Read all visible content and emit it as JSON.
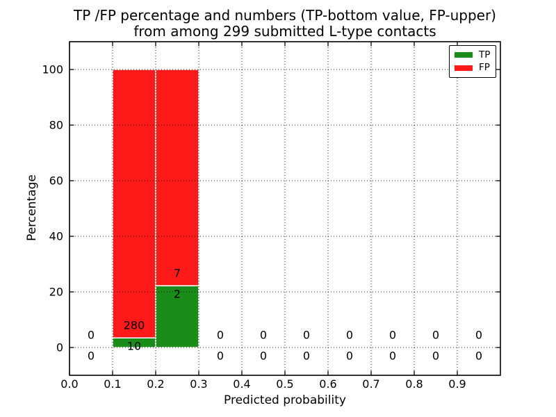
{
  "title": {
    "line1": "TP /FP percentage and numbers (TP-bottom value, FP-upper)",
    "line2": "from among 299 submitted L-type contacts"
  },
  "colors": {
    "tp_green": "#1a8c1a",
    "fp_red": "#ff1a1a",
    "background": "#ffffff",
    "grid": "#000000",
    "bar_edge": "#ffffff",
    "text": "#000000"
  },
  "chart_data": {
    "type": "bar",
    "stacked": true,
    "title": "TP /FP percentage and numbers (TP-bottom value, FP-upper) from among 299 submitted L-type contacts",
    "xlabel": "Predicted probability",
    "ylabel": "Percentage",
    "xlim": [
      0.0,
      1.0
    ],
    "ylim": [
      -10,
      110
    ],
    "grid": "dotted",
    "xticks": {
      "values": [
        0.0,
        0.1,
        0.2,
        0.3,
        0.4,
        0.5,
        0.6,
        0.7,
        0.8,
        0.9
      ],
      "labels": [
        "0.0",
        "0.1",
        "0.2",
        "0.3",
        "0.4",
        "0.5",
        "0.6",
        "0.7",
        "0.8",
        "0.9"
      ]
    },
    "yticks": {
      "values": [
        0,
        20,
        40,
        60,
        80,
        100
      ],
      "labels": [
        "0",
        "20",
        "40",
        "60",
        "80",
        "100"
      ]
    },
    "legend": {
      "position": "upper right",
      "entries": [
        {
          "label": "TP",
          "color": "#1a8c1a"
        },
        {
          "label": "FP",
          "color": "#ff1a1a"
        }
      ]
    },
    "total_submitted": 299,
    "bins": [
      {
        "range": [
          0.0,
          0.1
        ],
        "tp_count": 0,
        "fp_count": 0,
        "tp_pct": 0,
        "fp_pct": 0
      },
      {
        "range": [
          0.1,
          0.2
        ],
        "tp_count": 10,
        "fp_count": 280,
        "tp_pct": 3.45,
        "fp_pct": 96.55
      },
      {
        "range": [
          0.2,
          0.3
        ],
        "tp_count": 2,
        "fp_count": 7,
        "tp_pct": 22.22,
        "fp_pct": 77.78
      },
      {
        "range": [
          0.3,
          0.4
        ],
        "tp_count": 0,
        "fp_count": 0,
        "tp_pct": 0,
        "fp_pct": 0
      },
      {
        "range": [
          0.4,
          0.5
        ],
        "tp_count": 0,
        "fp_count": 0,
        "tp_pct": 0,
        "fp_pct": 0
      },
      {
        "range": [
          0.5,
          0.6
        ],
        "tp_count": 0,
        "fp_count": 0,
        "tp_pct": 0,
        "fp_pct": 0
      },
      {
        "range": [
          0.6,
          0.7
        ],
        "tp_count": 0,
        "fp_count": 0,
        "tp_pct": 0,
        "fp_pct": 0
      },
      {
        "range": [
          0.7,
          0.8
        ],
        "tp_count": 0,
        "fp_count": 0,
        "tp_pct": 0,
        "fp_pct": 0
      },
      {
        "range": [
          0.8,
          0.9
        ],
        "tp_count": 0,
        "fp_count": 0,
        "tp_pct": 0,
        "fp_pct": 0
      },
      {
        "range": [
          0.9,
          1.0
        ],
        "tp_count": 0,
        "fp_count": 0,
        "tp_pct": 0,
        "fp_pct": 0
      }
    ]
  }
}
